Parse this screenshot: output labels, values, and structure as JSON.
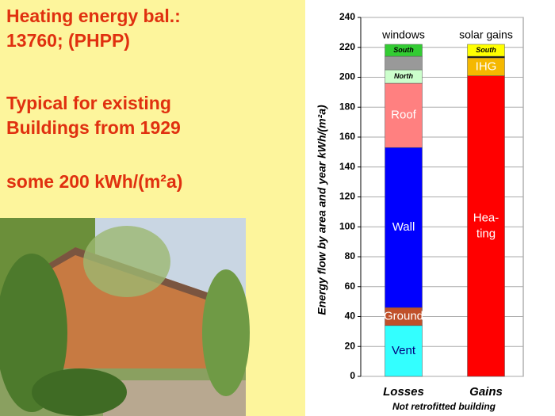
{
  "slide": {
    "heading": [
      [
        "Heating energy bal.:",
        "13760; (PHPP)"
      ],
      [
        "Typical for existing",
        "Buildings from 1929"
      ],
      [
        "some 200 kWh/(m²a)"
      ]
    ]
  },
  "chart_data": {
    "type": "stacked_bar",
    "ylabel": "Energy flow by area and year  kWh/(m²a)",
    "subtitle": "Not retrofitted building",
    "group_labels": [
      "windows",
      "solar gains"
    ],
    "categories": [
      "Losses",
      "Gains"
    ],
    "stacks": [
      [
        {
          "label": "Vent",
          "color": "#33ffff",
          "text_color": "#000080",
          "value": 34
        },
        {
          "label": "Ground",
          "color": "#c0502a",
          "text_color": "#ffffff",
          "value": 12
        },
        {
          "label": "Wall",
          "color": "#0000ff",
          "text_color": "#ffffff",
          "value": 107
        },
        {
          "label": "Roof",
          "color": "#ff8080",
          "text_color": "#ffffff",
          "value": 43
        },
        {
          "label": "North",
          "color": "#ccffcc",
          "text_color": "#000000",
          "value": 9
        },
        {
          "label": null,
          "color": "#999999",
          "text_color": "#000000",
          "value": 9
        },
        {
          "label": "South",
          "color": "#33cc33",
          "text_color": "#000000",
          "value": 8
        }
      ],
      [
        {
          "label": [
            "Hea-",
            "ting"
          ],
          "color": "#ff0000",
          "text_color": "#ffffff",
          "value": 201
        },
        {
          "label": "IHG",
          "color": "#f5b800",
          "text_color": "#ffffff",
          "value": 12
        },
        {
          "label": null,
          "color": "#000000",
          "text_color": "#000000",
          "value": 1
        },
        {
          "label": "South",
          "color": "#ffff00",
          "text_color": "#000000",
          "value": 8
        }
      ]
    ],
    "ylim": [
      0,
      240
    ],
    "yticks": [
      0,
      20,
      40,
      60,
      80,
      100,
      120,
      140,
      160,
      180,
      200,
      220,
      240
    ],
    "grid": true
  }
}
